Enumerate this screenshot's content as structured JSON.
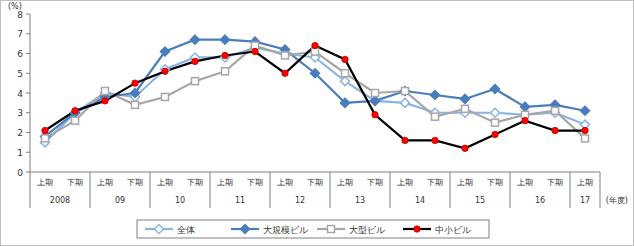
{
  "chart_data": {
    "type": "line",
    "y_label": "(%)",
    "x_label": "(年度)",
    "categories": [
      "上期",
      "下期",
      "上期",
      "下期",
      "上期",
      "下期",
      "上期",
      "下期",
      "上期",
      "下期",
      "上期",
      "下期",
      "上期",
      "下期",
      "上期",
      "下期",
      "上期",
      "下期",
      "上期"
    ],
    "year_labels": [
      "2008",
      null,
      "09",
      null,
      "10",
      null,
      "11",
      null,
      "12",
      null,
      "13",
      null,
      "14",
      null,
      "15",
      null,
      "16",
      null,
      "17"
    ],
    "ylim": [
      0,
      8
    ],
    "yticks": [
      0,
      1,
      2,
      3,
      4,
      5,
      6,
      7,
      8
    ],
    "grid": false,
    "legend": "bottom",
    "series": [
      {
        "name": "全体",
        "color": "#8db3e2",
        "marker": "diamond-open",
        "values": [
          1.5,
          3.0,
          4.0,
          3.8,
          5.2,
          5.8,
          5.8,
          6.3,
          6.0,
          5.8,
          4.6,
          3.6,
          3.5,
          3.0,
          3.0,
          3.0,
          2.9,
          3.0,
          2.4
        ]
      },
      {
        "name": "大規模ビル",
        "color": "#4a7ebb",
        "marker": "diamond",
        "values": [
          1.8,
          3.0,
          3.8,
          4.0,
          6.1,
          6.7,
          6.7,
          6.6,
          6.2,
          5.0,
          3.5,
          3.6,
          4.1,
          3.9,
          3.7,
          4.2,
          3.3,
          3.4,
          3.1
        ]
      },
      {
        "name": "大型ビル",
        "color": "#a6a6a6",
        "marker": "square-open",
        "values": [
          1.7,
          2.6,
          4.1,
          3.4,
          3.8,
          4.6,
          5.1,
          6.4,
          5.9,
          6.1,
          5.0,
          4.0,
          4.1,
          2.8,
          3.2,
          2.5,
          2.9,
          3.1,
          1.7
        ]
      },
      {
        "name": "中小ビル",
        "color": "#000000",
        "marker": "circle",
        "values": [
          2.1,
          3.1,
          3.6,
          4.5,
          5.1,
          5.6,
          5.9,
          6.1,
          5.0,
          6.4,
          5.7,
          2.9,
          1.6,
          1.6,
          1.2,
          1.9,
          2.6,
          2.1,
          2.1
        ]
      }
    ]
  }
}
